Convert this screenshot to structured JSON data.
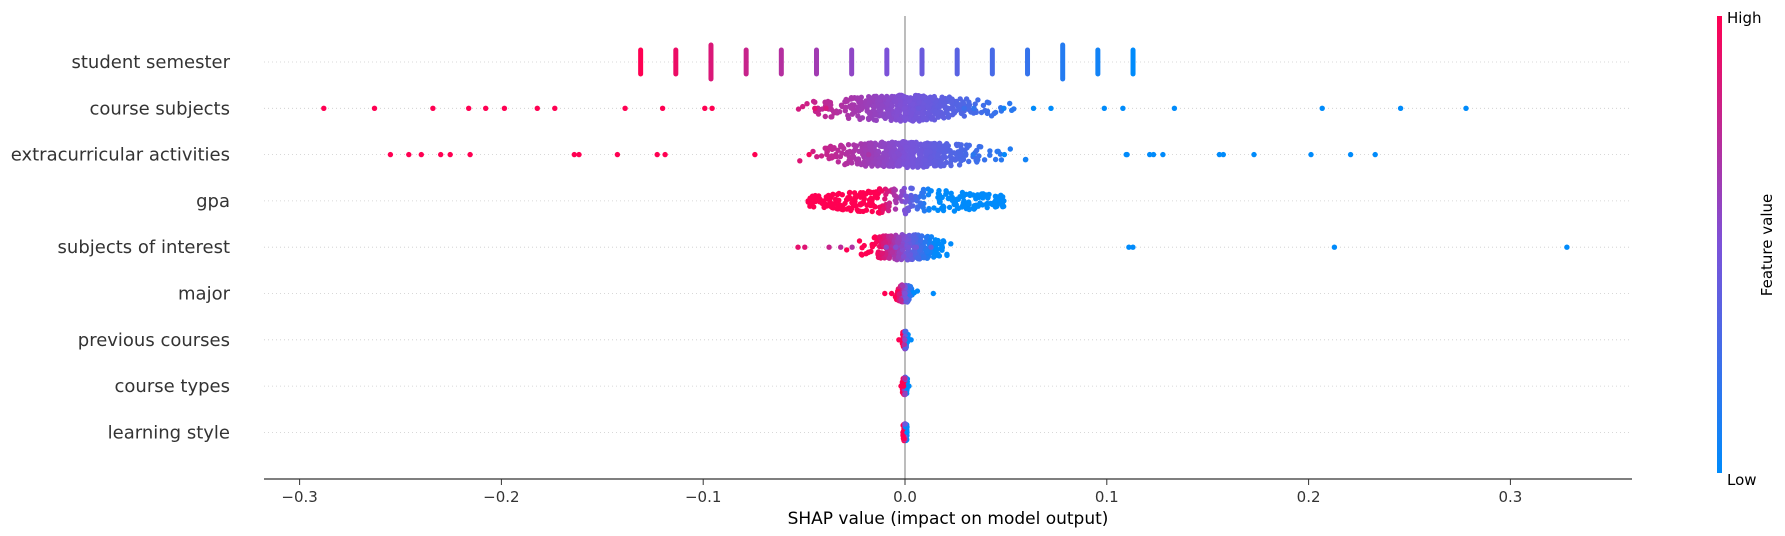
{
  "chart_data": {
    "type": "scatter",
    "subtype": "shap-beeswarm",
    "xlabel": "SHAP value (impact on model output)",
    "xlim": [
      -0.32,
      0.36
    ],
    "xticks": [
      -0.3,
      -0.2,
      -0.1,
      0.0,
      0.1,
      0.2,
      0.3
    ],
    "xtick_labels": [
      "−0.3",
      "−0.2",
      "−0.1",
      "0.0",
      "0.1",
      "0.2",
      "0.3"
    ],
    "grid": false,
    "features": [
      {
        "name": "student semester",
        "min": -0.131,
        "max": 0.113
      },
      {
        "name": "course subjects",
        "min": -0.288,
        "max": 0.278
      },
      {
        "name": "extracurricular activities",
        "min": -0.255,
        "max": 0.233
      },
      {
        "name": "gpa",
        "min": -0.048,
        "max": 0.049
      },
      {
        "name": "subjects of interest",
        "min": -0.053,
        "max": 0.328
      },
      {
        "name": "major",
        "min": -0.01,
        "max": 0.014
      },
      {
        "name": "previous courses",
        "min": -0.003,
        "max": 0.003
      },
      {
        "name": "course types",
        "min": -0.002,
        "max": 0.002
      },
      {
        "name": "learning style",
        "min": -0.001,
        "max": 0.001
      }
    ],
    "colorbar": {
      "label": "Feature value",
      "high_label": "High",
      "low_label": "Low",
      "high_color": "#ff0052",
      "low_color": "#008bfb"
    }
  }
}
